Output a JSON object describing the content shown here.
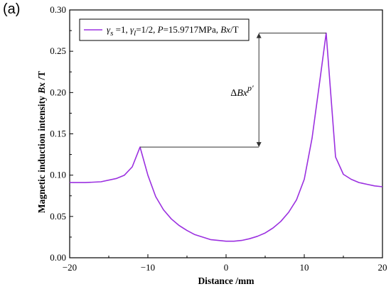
{
  "panel_label": "(a)",
  "chart_data": {
    "type": "line",
    "title": "",
    "xlabel": "Distance /mm",
    "ylabel": "Magnetic induction intensity Bx /T",
    "xlim": [
      -20,
      20
    ],
    "ylim": [
      0,
      0.3
    ],
    "xticks": [
      -20,
      -10,
      0,
      10,
      20
    ],
    "yticks": [
      0.0,
      0.05,
      0.1,
      0.15,
      0.2,
      0.25,
      0.3
    ],
    "grid": false,
    "legend_position": "top-left",
    "series": [
      {
        "name": "γs =1, γl=1/2, P=15.9717MPa, Bx/T",
        "color": "#9b30e0",
        "x": [
          -20,
          -18,
          -16,
          -14,
          -13,
          -12,
          -11,
          -10,
          -9,
          -8,
          -7,
          -6,
          -5,
          -4,
          -3,
          -2,
          -1,
          0,
          1,
          2,
          3,
          4,
          5,
          6,
          7,
          8,
          9,
          10,
          11,
          12,
          12.8,
          14,
          15,
          16,
          17,
          18,
          19,
          20
        ],
        "y": [
          0.091,
          0.091,
          0.092,
          0.096,
          0.1,
          0.11,
          0.134,
          0.1,
          0.074,
          0.058,
          0.047,
          0.039,
          0.033,
          0.028,
          0.025,
          0.022,
          0.021,
          0.02,
          0.02,
          0.021,
          0.023,
          0.026,
          0.03,
          0.036,
          0.044,
          0.055,
          0.07,
          0.095,
          0.145,
          0.215,
          0.272,
          0.122,
          0.101,
          0.095,
          0.091,
          0.089,
          0.087,
          0.086
        ]
      }
    ],
    "annotations": [
      {
        "text": "ΔBxp′",
        "from_y": 0.134,
        "to_y": 0.272,
        "at_x": 4.2,
        "left_x": -11,
        "right_x": 12.8
      }
    ]
  }
}
